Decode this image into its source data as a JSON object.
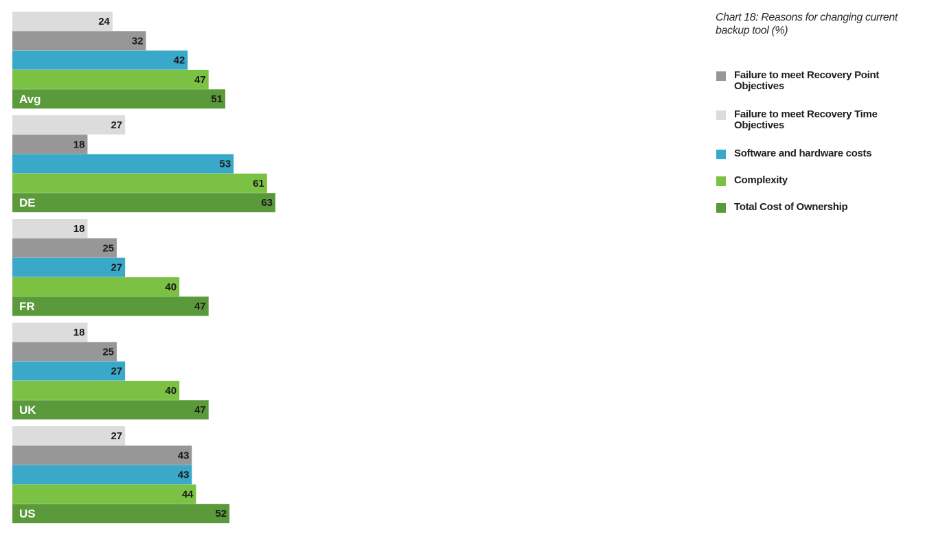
{
  "chart_data": {
    "type": "bar",
    "orientation": "horizontal",
    "title": "Chart 18: Reasons for changing current backup tool (%)",
    "categories": [
      "Avg",
      "DE",
      "FR",
      "UK",
      "US"
    ],
    "series": [
      {
        "name": "Failure to meet Recovery Time Objectives",
        "color": "#dcdcdc",
        "values": [
          24,
          27,
          18,
          18,
          27
        ]
      },
      {
        "name": "Failure to meet Recovery Point Objectives",
        "color": "#979797",
        "values": [
          32,
          18,
          25,
          25,
          43
        ]
      },
      {
        "name": "Software and hardware costs",
        "color": "#3aa8c9",
        "values": [
          42,
          53,
          27,
          27,
          43
        ]
      },
      {
        "name": "Complexity",
        "color": "#7bc143",
        "values": [
          47,
          61,
          40,
          40,
          44
        ]
      },
      {
        "name": "Total Cost of Ownership",
        "color": "#5a9a3a",
        "values": [
          51,
          63,
          47,
          47,
          52
        ]
      }
    ],
    "legend_order": [
      "Failure to meet Recovery Point Objectives",
      "Failure to meet Recovery Time Objectives",
      "Software and hardware costs",
      "Complexity",
      "Total Cost of Ownership"
    ],
    "legend_position": "right",
    "grid": false,
    "xlabel": "",
    "ylabel": ""
  }
}
